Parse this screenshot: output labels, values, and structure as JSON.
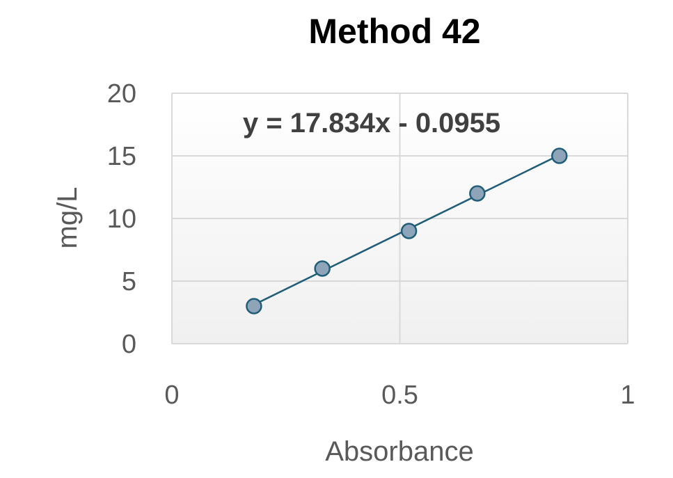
{
  "chart_data": {
    "type": "scatter",
    "title": "Method 42",
    "xlabel": "Absorbance",
    "ylabel": "mg/L",
    "xlim": [
      0,
      1
    ],
    "ylim": [
      0,
      20
    ],
    "xticks": [
      "0",
      "0.5",
      "1"
    ],
    "yticks": [
      "0",
      "5",
      "10",
      "15",
      "20"
    ],
    "grid": true,
    "legend": "none",
    "trendline": {
      "type": "linear",
      "slope": 17.834,
      "intercept": -0.0955,
      "equation_label": "y = 17.834x - 0.0955"
    },
    "points": [
      {
        "x": 0.18,
        "y": 3
      },
      {
        "x": 0.33,
        "y": 6
      },
      {
        "x": 0.52,
        "y": 9
      },
      {
        "x": 0.67,
        "y": 12
      },
      {
        "x": 0.85,
        "y": 15
      }
    ],
    "colors": {
      "marker_fill": "#8EA4B8",
      "marker_stroke": "#1F5D78",
      "line": "#1F5D78",
      "grid": "#D9D9D9",
      "plot_top": "#FFFFFF",
      "plot_bottom": "#F0F0F0"
    }
  }
}
